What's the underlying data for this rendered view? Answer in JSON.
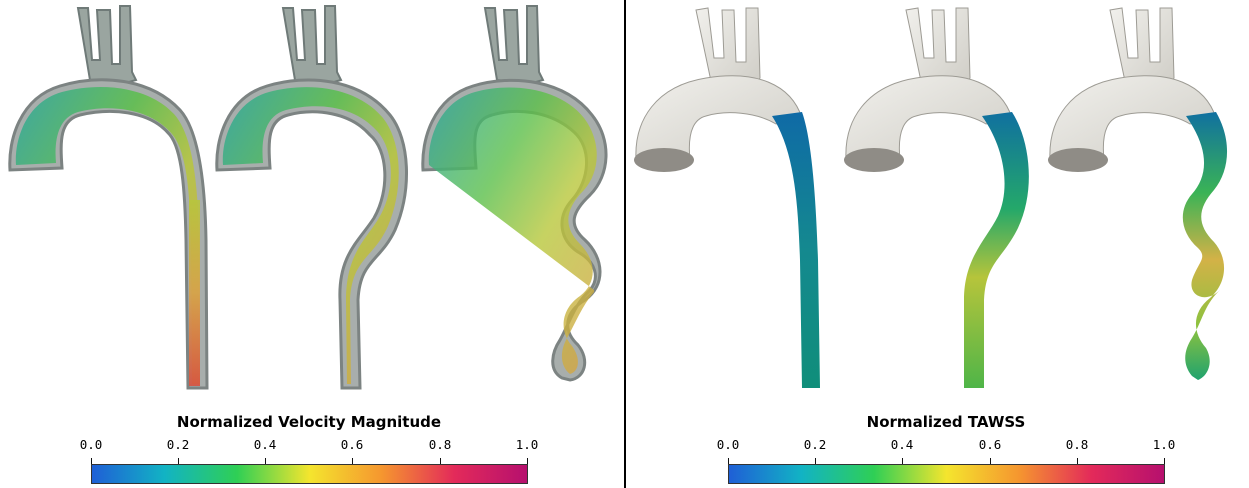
{
  "left": {
    "colorbar_title": "Normalized Velocity Magnitude",
    "ticks": [
      "0.0",
      "0.2",
      "0.4",
      "0.6",
      "0.8",
      "1.0"
    ],
    "colormap": [
      "#1f5fd6",
      "#12b3c4",
      "#2fcf55",
      "#f4e52e",
      "#f5962f",
      "#e32a5a",
      "#b6106e"
    ]
  },
  "right": {
    "colorbar_title": "Normalized TAWSS",
    "ticks": [
      "0.0",
      "0.2",
      "0.4",
      "0.6",
      "0.8",
      "1.0"
    ],
    "colormap": [
      "#1f5fd6",
      "#12b3c4",
      "#2fcf55",
      "#f4e52e",
      "#f5962f",
      "#e32a5a",
      "#b6106e"
    ]
  }
}
